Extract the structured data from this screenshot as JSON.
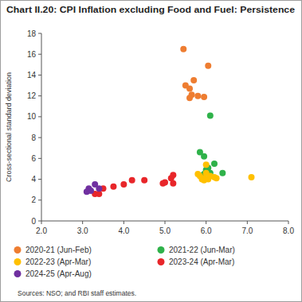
{
  "chart_data": {
    "type": "scatter",
    "title": "Chart II.20: CPI Inflation excluding Food and Fuel: Persistence",
    "y_label": "Cross-sectional standard deviation",
    "source": "Sources: NSO; and RBI staff estimates.",
    "xlim": [
      2,
      8
    ],
    "xticks": [
      {
        "value": 2,
        "label": "2.0"
      },
      {
        "value": 3,
        "label": "3.0"
      },
      {
        "value": 4,
        "label": "4.0"
      },
      {
        "value": 5,
        "label": "5.0"
      },
      {
        "value": 6,
        "label": "6.0"
      },
      {
        "value": 7,
        "label": "7.0"
      },
      {
        "value": 8,
        "label": "8.0"
      }
    ],
    "ylim": [
      0,
      18
    ],
    "yticks": [
      0,
      2,
      4,
      6,
      8,
      10,
      12,
      14,
      16,
      18
    ],
    "grid": false,
    "legend": "bottom",
    "marker": "circle",
    "series": [
      {
        "name": "2020-21 (Jun-Feb)",
        "color": "#ee7d31",
        "x": [
          5.45,
          6.05,
          5.7,
          5.5,
          5.6,
          5.65,
          5.6,
          5.8,
          5.95
        ],
        "values": [
          16.5,
          14.9,
          13.5,
          13.0,
          12.7,
          12.1,
          11.8,
          12.0,
          11.9
        ]
      },
      {
        "name": "2021-22 (Jun-Mar)",
        "color": "#2fb24a",
        "x": [
          6.1,
          5.85,
          5.95,
          6.2,
          6.0,
          6.1,
          6.4,
          5.95,
          6.05,
          5.9
        ],
        "values": [
          10.1,
          6.6,
          6.2,
          5.5,
          4.9,
          4.6,
          4.6,
          4.5,
          5.1,
          4.3
        ]
      },
      {
        "name": "2022-23 (Apr-Mar)",
        "color": "#ffc000",
        "x": [
          7.1,
          5.85,
          6.0,
          5.95,
          6.1,
          6.2,
          5.95,
          6.05,
          6.25,
          5.8,
          6.0,
          5.9
        ],
        "values": [
          4.2,
          4.3,
          5.4,
          4.1,
          4.3,
          4.2,
          3.9,
          4.0,
          4.1,
          4.5,
          4.6,
          4.0
        ]
      },
      {
        "name": "2023-24 (Apr-Mar)",
        "color": "#e8262a",
        "x": [
          5.2,
          5.15,
          5.2,
          4.95,
          4.5,
          4.2,
          4.0,
          3.75,
          3.5,
          3.3,
          3.4,
          5.0
        ],
        "values": [
          4.4,
          4.1,
          3.6,
          3.6,
          3.9,
          3.9,
          3.5,
          3.3,
          3.1,
          2.6,
          2.6,
          3.7
        ]
      },
      {
        "name": "2024-25 (Apr-Aug)",
        "color": "#7030a0",
        "x": [
          3.15,
          3.1,
          3.3,
          3.4,
          3.2
        ],
        "values": [
          3.1,
          2.8,
          3.5,
          3.1,
          2.9
        ]
      }
    ]
  }
}
